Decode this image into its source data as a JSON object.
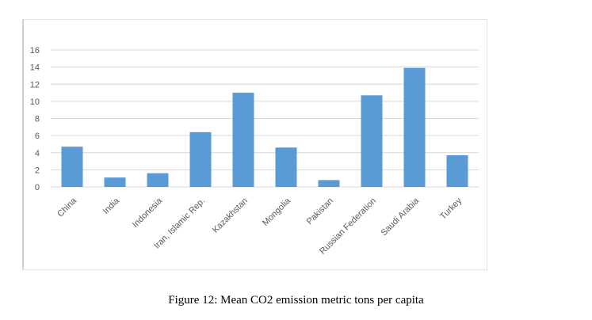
{
  "caption": "Figure 12: Mean CO2 emission metric tons per capita",
  "colors": {
    "bar": "#5b9bd5",
    "grid": "#d9d9d9",
    "text": "#595959"
  },
  "chart_data": {
    "type": "bar",
    "title": "",
    "xlabel": "",
    "ylabel": "",
    "ylim": [
      0,
      16
    ],
    "yticks": [
      0,
      2,
      4,
      6,
      8,
      10,
      12,
      14,
      16
    ],
    "grid": true,
    "categories": [
      "China",
      "India",
      "Indonesia",
      "Iran, Islamic Rep.",
      "Kazakhstan",
      "Mongolia",
      "Pakistan",
      "Russian Federation",
      "Saudi Arabia",
      "Turkey"
    ],
    "values": [
      4.7,
      1.1,
      1.6,
      6.4,
      11.0,
      4.6,
      0.8,
      10.7,
      13.9,
      3.7
    ]
  }
}
